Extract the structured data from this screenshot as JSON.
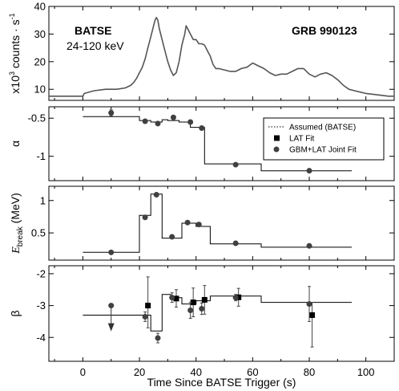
{
  "chart_data": {
    "type": "line",
    "xlabel": "Time Since BATSE Trigger (s)",
    "xlim": [
      -12,
      110
    ],
    "xticks": [
      0,
      20,
      40,
      60,
      80,
      100
    ],
    "panels": [
      {
        "id": "batse",
        "ylabel_parts": [
          "x10",
          "3",
          "counts · s",
          "-1"
        ],
        "ylim": [
          6,
          40
        ],
        "yticks": [
          10,
          20,
          30,
          40
        ],
        "annotations": [
          {
            "text": "BATSE",
            "bold": true
          },
          {
            "text": "24-120 keV",
            "bold": false
          },
          {
            "text": "GRB 990123",
            "bold": true
          }
        ],
        "series": [
          {
            "style": "histogram-line",
            "x": [
              -12,
              0,
              0.5,
              4,
              8,
              12,
              15,
              17,
              18,
              19,
              20,
              21,
              22,
              23,
              24,
              25,
              25.5,
              26,
              26.5,
              27,
              28,
              29,
              30,
              31,
              32,
              33,
              34,
              35,
              36,
              36.5,
              37,
              38,
              39,
              40,
              41,
              42,
              43,
              44,
              45,
              46,
              47,
              48,
              50,
              52,
              54,
              56,
              58,
              60,
              62,
              64,
              66,
              68,
              70,
              72,
              74,
              76,
              78,
              80,
              82,
              84,
              86,
              88,
              90,
              92,
              94,
              96,
              98,
              100,
              104,
              108,
              110
            ],
            "y": [
              7.5,
              7.5,
              8.5,
              9.5,
              10,
              10,
              10.5,
              11.5,
              12.5,
              14,
              16,
              18,
              21,
              25,
              29,
              33,
              35,
              36,
              35,
              32,
              28,
              24,
              20,
              17,
              15,
              16,
              20,
              26,
              30,
              33,
              32,
              30,
              28,
              28,
              26.5,
              26.5,
              26,
              24,
              22,
              19,
              17.5,
              17.5,
              17,
              16.5,
              16.5,
              17.5,
              18,
              19.5,
              18.5,
              17.5,
              16,
              15,
              15.5,
              15.5,
              16.5,
              17.5,
              17.5,
              15.5,
              14.5,
              15.5,
              16,
              15,
              13.5,
              11.5,
              10,
              9.5,
              9,
              8.5,
              8,
              7.5,
              7.5
            ]
          }
        ]
      },
      {
        "id": "alpha",
        "ylabel": "α",
        "ylim": [
          -1.32,
          -0.35
        ],
        "yticks": [
          -0.5,
          -1
        ],
        "ytick_labels": [
          "-0.5",
          "-1"
        ],
        "series": [
          {
            "name": "Assumed (BATSE)",
            "style": "step",
            "x": [
              0,
              20,
              24,
              28,
              30,
              34,
              38,
              43,
              45,
              63,
              95
            ],
            "y": [
              -0.48,
              -0.53,
              -0.55,
              -0.52,
              -0.53,
              -0.55,
              -0.62,
              -1.1,
              -1.1,
              -1.19,
              -1.19
            ]
          },
          {
            "name": "GBM+LAT Joint Fit",
            "style": "points",
            "x": [
              10,
              22,
              26.5,
              32,
              38,
              42,
              54,
              80
            ],
            "y": [
              -0.43,
              -0.54,
              -0.57,
              -0.49,
              -0.55,
              -0.63,
              -1.11,
              -1.19
            ],
            "yerr": [
              0.04,
              0.01,
              0.01,
              0.01,
              0.01,
              0.01,
              0.01,
              0.01
            ]
          }
        ]
      },
      {
        "id": "ebreak",
        "ylabel": "E",
        "ylabel_sub": "break",
        "ylabel_unit": "(MeV)",
        "ylim": [
          0.08,
          1.22
        ],
        "yticks": [
          0.5,
          1
        ],
        "ytick_labels": [
          "0.5",
          "1"
        ],
        "series": [
          {
            "name": "Assumed (BATSE)",
            "style": "step",
            "x": [
              0,
              20,
              24,
              28,
              31,
              35,
              40,
              45,
              63,
              95
            ],
            "y": [
              0.2,
              0.77,
              1.1,
              0.42,
              0.42,
              0.65,
              0.6,
              0.33,
              0.28,
              0.28
            ]
          },
          {
            "name": "GBM+LAT Joint Fit",
            "style": "points",
            "x": [
              10,
              22,
              26,
              31.5,
              37,
              41,
              54,
              80
            ],
            "y": [
              0.2,
              0.74,
              1.09,
              0.44,
              0.66,
              0.63,
              0.34,
              0.3
            ],
            "yerr": [
              0.01,
              0.01,
              0.02,
              0.01,
              0.01,
              0.01,
              0.01,
              0.01
            ]
          }
        ]
      },
      {
        "id": "beta",
        "ylabel": "β",
        "ylim": [
          -4.75,
          -1.75
        ],
        "yticks": [
          -2,
          -3,
          -4
        ],
        "ytick_labels": [
          "-2",
          "-3",
          "-4"
        ],
        "series": [
          {
            "name": "Assumed (BATSE)",
            "style": "step",
            "x": [
              0,
              20,
              24,
              28,
              31,
              35,
              40,
              45,
              63,
              95
            ],
            "y": [
              -3.3,
              -3.3,
              -3.8,
              -2.65,
              -2.75,
              -2.95,
              -2.85,
              -2.7,
              -2.9,
              -2.9
            ]
          },
          {
            "name": "LAT Fit",
            "style": "points",
            "x": [
              23,
              33,
              39,
              43,
              55,
              81
            ],
            "y": [
              -3.0,
              -2.78,
              -2.9,
              -2.82,
              -2.74,
              -3.3
            ],
            "yerr_low": [
              0.7,
              0.27,
              0.45,
              0.45,
              0.28,
              1.0
            ],
            "yerr_high": [
              0.9,
              0.28,
              0.45,
              0.45,
              0.28,
              0.4
            ]
          },
          {
            "name": "GBM+LAT Joint Fit",
            "style": "points",
            "x": [
              10,
              22,
              26.5,
              31.5,
              38,
              42,
              54,
              80
            ],
            "y": [
              -3.0,
              -3.35,
              -4.02,
              -2.75,
              -3.15,
              -3.1,
              -2.75,
              -2.95
            ],
            "yerr_low": [
              0,
              0.15,
              0.15,
              0.15,
              0.25,
              0.18,
              0.1,
              0.55
            ],
            "yerr_high": [
              0,
              0.15,
              0.15,
              0.15,
              0.25,
              0.18,
              0.1,
              0.55
            ],
            "upper_limit_arrow": [
              true,
              false,
              false,
              false,
              false,
              false,
              false,
              false
            ]
          }
        ]
      }
    ],
    "legend": {
      "position": "top-right",
      "entries": [
        {
          "label": "Assumed (BATSE)",
          "marker": "dotted-line"
        },
        {
          "label": "LAT Fit",
          "marker": "square"
        },
        {
          "label": "GBM+LAT Joint Fit",
          "marker": "circle"
        }
      ]
    }
  }
}
